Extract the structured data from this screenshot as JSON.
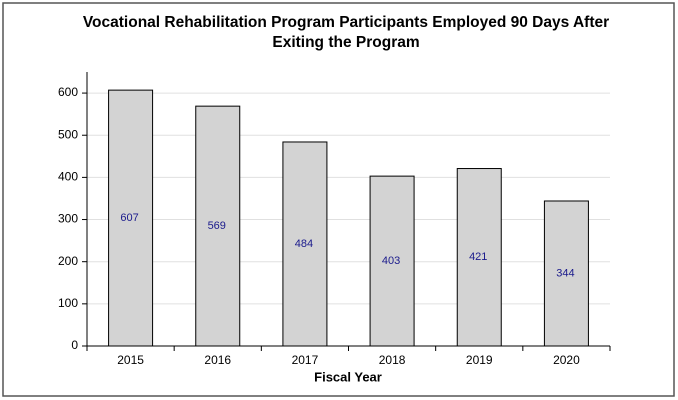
{
  "chart_data": {
    "type": "bar",
    "title": "Vocational Rehabilitation Program Participants Employed 90 Days After",
    "title_line2": "Exiting the Program",
    "xlabel": "Fiscal Year",
    "categories": [
      "2015",
      "2016",
      "2017",
      "2018",
      "2019",
      "2020"
    ],
    "values": [
      607,
      569,
      484,
      403,
      421,
      344
    ],
    "color": "#d3d3d3",
    "label_color": "#1a1a8c",
    "ylim": [
      0,
      650
    ],
    "yticks": [
      0,
      100,
      200,
      300,
      400,
      500,
      600
    ],
    "grid": true
  }
}
